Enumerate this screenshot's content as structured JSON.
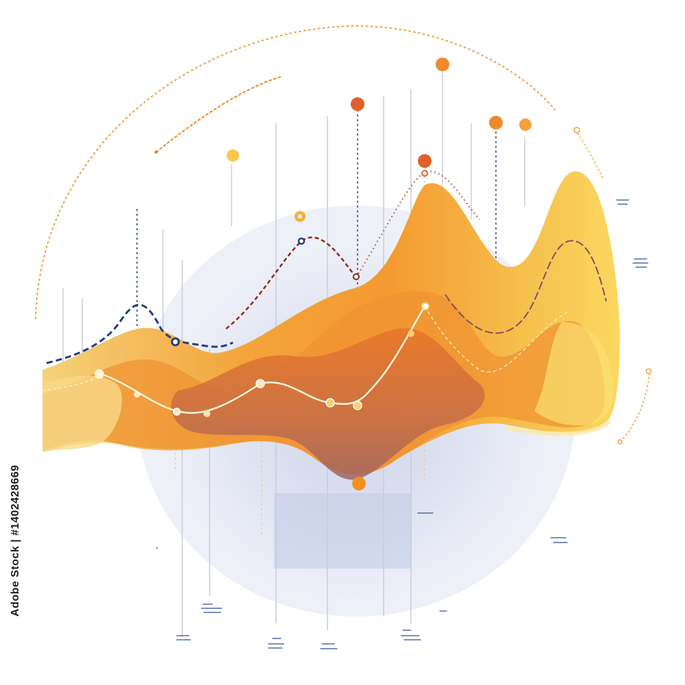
{
  "watermark": {
    "id_text": "Adobe Stock | #1402428669",
    "pattern_text": "Adobe Stock"
  },
  "colors": {
    "background": "#ffffff",
    "backdrop_circle": "#e4e8f4",
    "yellow": "#f9cf57",
    "amber": "#f4a63a",
    "orange": "#ea7e2a",
    "deep_orange": "#c96a3d",
    "mauve": "#9f6465",
    "navy": "#1f3f80",
    "dark_red": "#8b2a1f",
    "marker_orange": "#f08a2a",
    "marker_red": "#e0602a",
    "marker_yellow": "#f8c84a"
  },
  "icons": [
    "data-point-marker-icon",
    "dotted-arc-icon",
    "guide-line-icon"
  ]
}
